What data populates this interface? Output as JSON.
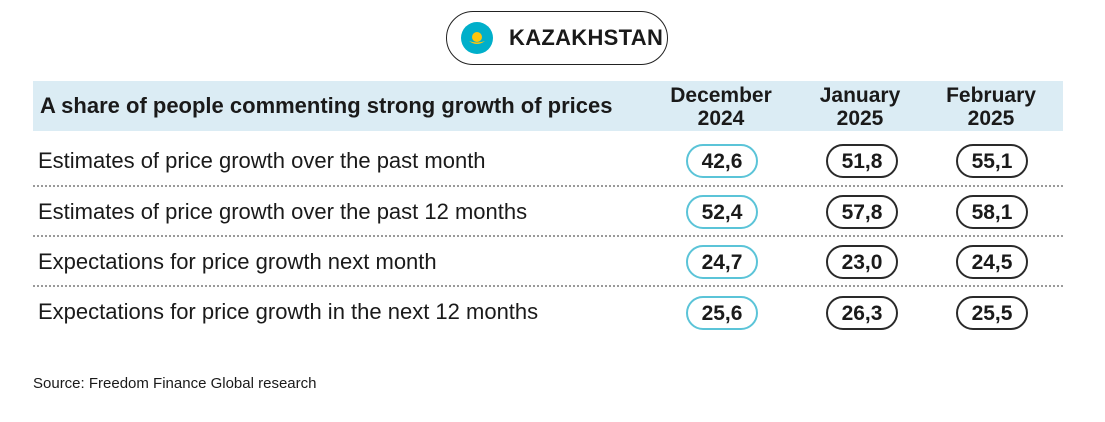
{
  "country": {
    "name": "KAZAKHSTAN",
    "flag_icon": "kazakhstan-flag-icon",
    "flag_color": "#00afca",
    "flag_emblem_color": "#fec50c"
  },
  "colors": {
    "header_band": "#dbecf4",
    "december_pill_border": "#5bc4d8",
    "other_pill_border": "#2a2a2a"
  },
  "chart_data": {
    "type": "table",
    "title": "A share of people commenting strong growth of prices",
    "columns": [
      {
        "line1": "December",
        "line2": "2024"
      },
      {
        "line1": "January",
        "line2": "2025"
      },
      {
        "line1": "February",
        "line2": "2025"
      }
    ],
    "rows": [
      {
        "label": "Estimates of price growth over the past month",
        "values": [
          "42,6",
          "51,8",
          "55,1"
        ]
      },
      {
        "label": "Estimates of price growth over the past 12 months",
        "values": [
          "52,4",
          "57,8",
          "58,1"
        ]
      },
      {
        "label": "Expectations for price growth next month",
        "values": [
          "24,7",
          "23,0",
          "24,5"
        ]
      },
      {
        "label": "Expectations for price growth in the next 12 months",
        "values": [
          "25,6",
          "26,3",
          "25,5"
        ]
      }
    ]
  },
  "source": "Source: Freedom Finance Global research"
}
